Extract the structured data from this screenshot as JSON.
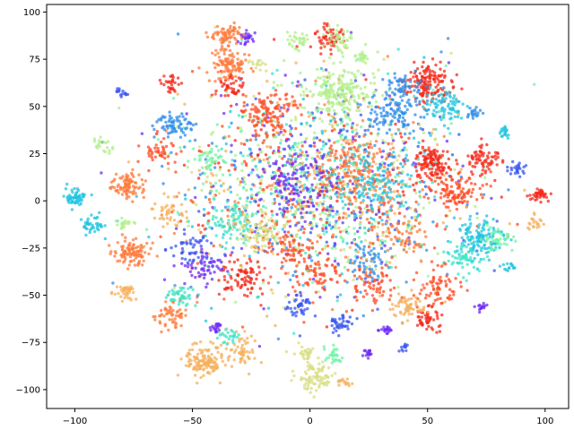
{
  "chart_data": {
    "type": "scatter",
    "title": "",
    "xlabel": "",
    "ylabel": "",
    "xlim": [
      -112,
      110
    ],
    "ylim": [
      -110,
      104
    ],
    "x_ticks": [
      -100,
      -50,
      0,
      50,
      100
    ],
    "y_ticks": [
      -100,
      -75,
      -50,
      -25,
      0,
      25,
      50,
      75,
      100
    ],
    "x_tick_labels": [
      "−100",
      "−50",
      "0",
      "50",
      "100"
    ],
    "y_tick_labels": [
      "−100",
      "−75",
      "−50",
      "−25",
      "0",
      "25",
      "50",
      "75",
      "100"
    ],
    "grid": false,
    "legend": "none",
    "palette": [
      "#6f2cf5",
      "#3a56f0",
      "#2f8ee8",
      "#21c4e0",
      "#3ee6c6",
      "#72f5a6",
      "#b2ef8a",
      "#d8dd80",
      "#f5b05c",
      "#fd7b3c",
      "#ff4d26",
      "#f52a1b"
    ],
    "background_points": {
      "count": 1800,
      "x_center": 5,
      "y_center": 8,
      "x_spread": 30,
      "y_spread": 28
    },
    "clusters": [
      {
        "x": -100,
        "y": 2,
        "n": 60,
        "s": 2.2,
        "c": 3
      },
      {
        "x": -92,
        "y": -13,
        "n": 40,
        "s": 2.5,
        "c": 3
      },
      {
        "x": -78,
        "y": 8,
        "n": 90,
        "s": 3.5,
        "c": 9
      },
      {
        "x": -76,
        "y": -28,
        "n": 100,
        "s": 3.5,
        "c": 9
      },
      {
        "x": -78,
        "y": -48,
        "n": 40,
        "s": 2.5,
        "c": 8
      },
      {
        "x": -79,
        "y": -12,
        "n": 20,
        "s": 2,
        "c": 6
      },
      {
        "x": -88,
        "y": 30,
        "n": 20,
        "s": 2,
        "c": 6
      },
      {
        "x": -80,
        "y": 57,
        "n": 15,
        "s": 1.2,
        "c": 1
      },
      {
        "x": -60,
        "y": 62,
        "n": 30,
        "s": 2.5,
        "c": 11
      },
      {
        "x": -57,
        "y": 40,
        "n": 70,
        "s": 4,
        "c": 2
      },
      {
        "x": -65,
        "y": 25,
        "n": 40,
        "s": 3.5,
        "c": 10
      },
      {
        "x": -42,
        "y": 22,
        "n": 40,
        "s": 3.5,
        "c": 5
      },
      {
        "x": -35,
        "y": 87,
        "n": 70,
        "s": 3,
        "c": 9
      },
      {
        "x": -27,
        "y": 86,
        "n": 25,
        "s": 1.5,
        "c": 0
      },
      {
        "x": -34,
        "y": 72,
        "n": 100,
        "s": 4,
        "c": 9
      },
      {
        "x": -33,
        "y": 60,
        "n": 40,
        "s": 3,
        "c": 11
      },
      {
        "x": -22,
        "y": 72,
        "n": 15,
        "s": 2,
        "c": 7
      },
      {
        "x": -18,
        "y": 45,
        "n": 120,
        "s": 6,
        "c": 10
      },
      {
        "x": 8,
        "y": 87,
        "n": 60,
        "s": 3,
        "c": 11
      },
      {
        "x": 12,
        "y": 86,
        "n": 40,
        "s": 4,
        "c": 6
      },
      {
        "x": -5,
        "y": 85,
        "n": 30,
        "s": 2,
        "c": 6
      },
      {
        "x": 12,
        "y": 58,
        "n": 200,
        "s": 7,
        "c": 6
      },
      {
        "x": 22,
        "y": 76,
        "n": 20,
        "s": 2,
        "c": 6
      },
      {
        "x": 50,
        "y": 62,
        "n": 150,
        "s": 5,
        "c": 11
      },
      {
        "x": 40,
        "y": 60,
        "n": 60,
        "s": 4,
        "c": 2
      },
      {
        "x": 58,
        "y": 50,
        "n": 80,
        "s": 4,
        "c": 3
      },
      {
        "x": 35,
        "y": 45,
        "n": 100,
        "s": 6,
        "c": 2
      },
      {
        "x": 70,
        "y": 47,
        "n": 20,
        "s": 1.5,
        "c": 2
      },
      {
        "x": 52,
        "y": 20,
        "n": 130,
        "s": 4,
        "c": 11
      },
      {
        "x": 63,
        "y": 5,
        "n": 100,
        "s": 5,
        "c": 10
      },
      {
        "x": 74,
        "y": 22,
        "n": 70,
        "s": 4,
        "c": 11
      },
      {
        "x": 82,
        "y": 36,
        "n": 20,
        "s": 1.5,
        "c": 3
      },
      {
        "x": 88,
        "y": 17,
        "n": 25,
        "s": 2,
        "c": 1
      },
      {
        "x": 98,
        "y": 3,
        "n": 40,
        "s": 1.8,
        "c": 11
      },
      {
        "x": 96,
        "y": -12,
        "n": 20,
        "s": 2,
        "c": 8
      },
      {
        "x": 72,
        "y": -20,
        "n": 130,
        "s": 5,
        "c": 3
      },
      {
        "x": 80,
        "y": -20,
        "n": 40,
        "s": 3,
        "c": 5
      },
      {
        "x": 65,
        "y": -30,
        "n": 50,
        "s": 4,
        "c": 4
      },
      {
        "x": 85,
        "y": -35,
        "n": 15,
        "s": 1.5,
        "c": 3
      },
      {
        "x": 73,
        "y": -56,
        "n": 15,
        "s": 1.2,
        "c": 0
      },
      {
        "x": 55,
        "y": -46,
        "n": 70,
        "s": 5,
        "c": 10
      },
      {
        "x": 50,
        "y": -62,
        "n": 50,
        "s": 3,
        "c": 11
      },
      {
        "x": 41,
        "y": -56,
        "n": 60,
        "s": 4,
        "c": 8
      },
      {
        "x": 32,
        "y": -68,
        "n": 20,
        "s": 1.5,
        "c": 0
      },
      {
        "x": 40,
        "y": -78,
        "n": 12,
        "s": 1.2,
        "c": 1
      },
      {
        "x": 27,
        "y": -45,
        "n": 60,
        "s": 5,
        "c": 10
      },
      {
        "x": 13,
        "y": -65,
        "n": 40,
        "s": 2.5,
        "c": 1
      },
      {
        "x": 10,
        "y": -82,
        "n": 30,
        "s": 2.5,
        "c": 5
      },
      {
        "x": 25,
        "y": -80,
        "n": 15,
        "s": 1.2,
        "c": 0
      },
      {
        "x": -2,
        "y": -80,
        "n": 30,
        "s": 3,
        "c": 7
      },
      {
        "x": 2,
        "y": -93,
        "n": 80,
        "s": 4,
        "c": 7
      },
      {
        "x": 15,
        "y": -97,
        "n": 15,
        "s": 1.5,
        "c": 8
      },
      {
        "x": -5,
        "y": -55,
        "n": 40,
        "s": 3,
        "c": 1
      },
      {
        "x": 3,
        "y": -40,
        "n": 60,
        "s": 5,
        "c": 10
      },
      {
        "x": -10,
        "y": -25,
        "n": 60,
        "s": 5,
        "c": 10
      },
      {
        "x": -30,
        "y": -40,
        "n": 80,
        "s": 5,
        "c": 11
      },
      {
        "x": -45,
        "y": -35,
        "n": 60,
        "s": 5,
        "c": 0
      },
      {
        "x": -45,
        "y": -85,
        "n": 130,
        "s": 4,
        "c": 8
      },
      {
        "x": -30,
        "y": -80,
        "n": 60,
        "s": 4,
        "c": 8
      },
      {
        "x": -35,
        "y": -72,
        "n": 25,
        "s": 2,
        "c": 4
      },
      {
        "x": -40,
        "y": -67,
        "n": 20,
        "s": 1.5,
        "c": 0
      },
      {
        "x": -58,
        "y": -60,
        "n": 60,
        "s": 4,
        "c": 9
      },
      {
        "x": -55,
        "y": -50,
        "n": 40,
        "s": 3,
        "c": 4
      },
      {
        "x": -50,
        "y": -25,
        "n": 50,
        "s": 5,
        "c": 1
      },
      {
        "x": -60,
        "y": -5,
        "n": 40,
        "s": 4,
        "c": 8
      },
      {
        "x": -32,
        "y": -10,
        "n": 80,
        "s": 6,
        "c": 4
      },
      {
        "x": -20,
        "y": -15,
        "n": 80,
        "s": 6,
        "c": 7
      },
      {
        "x": 25,
        "y": -32,
        "n": 50,
        "s": 5,
        "c": 2
      },
      {
        "x": 40,
        "y": -18,
        "n": 60,
        "s": 6,
        "c": 9
      },
      {
        "x": 20,
        "y": 15,
        "n": 150,
        "s": 9,
        "c": 9
      },
      {
        "x": -5,
        "y": 10,
        "n": 100,
        "s": 9,
        "c": 0
      },
      {
        "x": 30,
        "y": 10,
        "n": 100,
        "s": 8,
        "c": 3
      }
    ]
  }
}
